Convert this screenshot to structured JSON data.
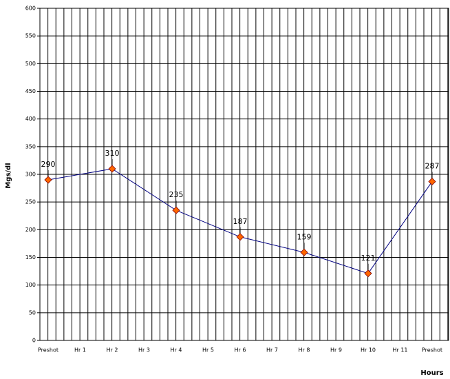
{
  "chart_data": {
    "type": "line",
    "y_label": "Mgs/dl",
    "x_label": "Hours",
    "categories": [
      "Preshot",
      "Hr 1",
      "Hr 2",
      "Hr 3",
      "Hr 4",
      "Hr 5",
      "Hr 6",
      "Hr 7",
      "Hr 8",
      "Hr 9",
      "Hr 10",
      "Hr 11",
      "Preshot"
    ],
    "series": [
      {
        "color": "#000080",
        "marker_color": "#ff6600",
        "values": [
          290,
          null,
          310,
          null,
          235,
          null,
          187,
          null,
          159,
          null,
          121,
          null,
          287
        ]
      }
    ],
    "span_gaps": true,
    "data_labels": true,
    "ylim": [
      0,
      600
    ],
    "yticks": [
      0,
      50,
      100,
      150,
      200,
      250,
      300,
      350,
      400,
      450,
      500,
      550,
      600
    ],
    "grid": true
  }
}
